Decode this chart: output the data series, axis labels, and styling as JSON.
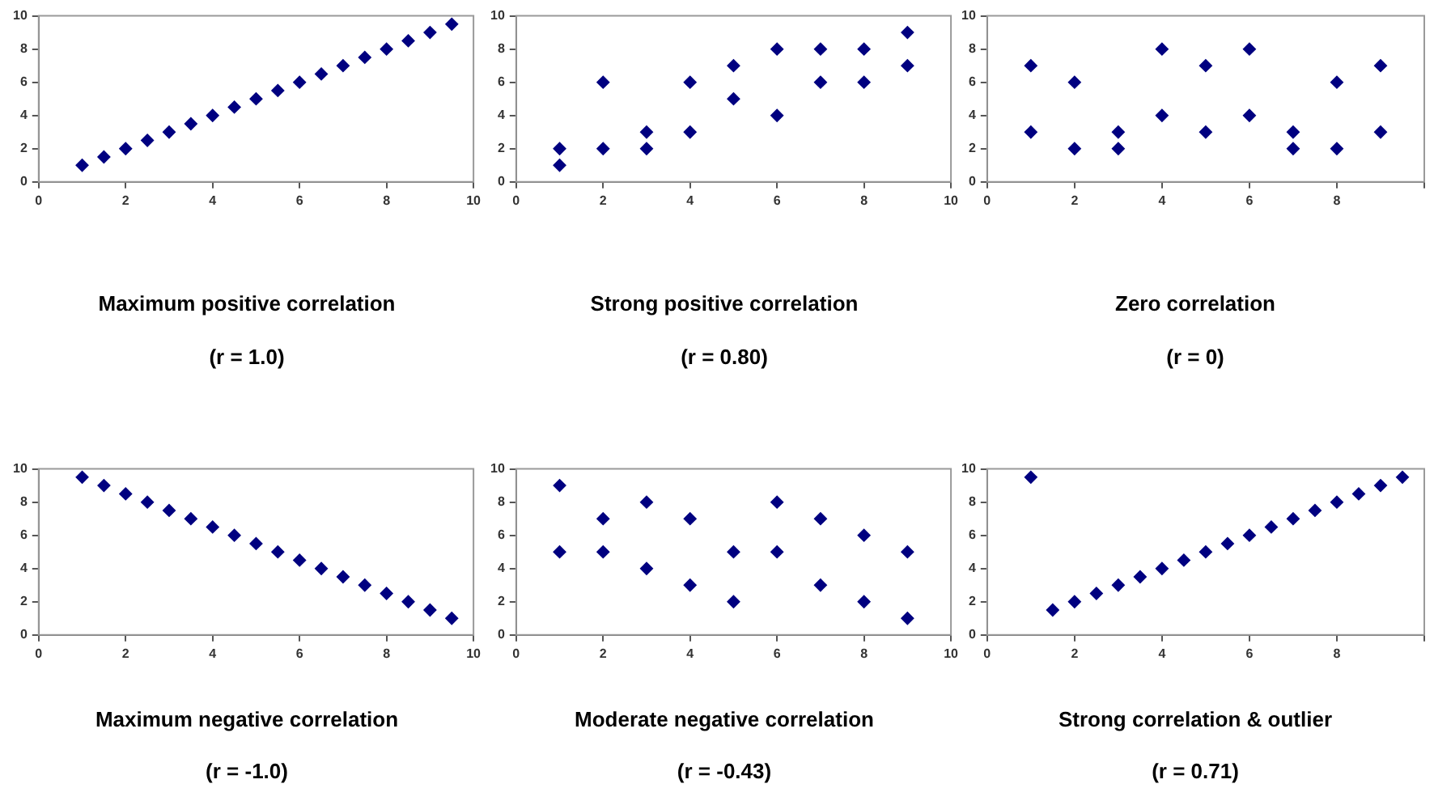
{
  "chart_data": [
    {
      "type": "scatter",
      "title": "Maximum positive correlation",
      "subtitle": "(r = 1.0)",
      "x": [
        1,
        1.5,
        2,
        2.5,
        3,
        3.5,
        4,
        4.5,
        5,
        5.5,
        6,
        6.5,
        7,
        7.5,
        8,
        8.5,
        9,
        9.5
      ],
      "series": [
        {
          "color": "#000080",
          "values": [
            1,
            1.5,
            2,
            2.5,
            3,
            3.5,
            4,
            4.5,
            5,
            5.5,
            6,
            6.5,
            7,
            7.5,
            8,
            8.5,
            9,
            9.5
          ]
        }
      ],
      "xlim": [
        0,
        10
      ],
      "ylim": [
        0,
        10
      ],
      "xticks": [
        0,
        2,
        4,
        6,
        8,
        10
      ],
      "yticks": [
        0,
        2,
        4,
        6,
        8,
        10
      ],
      "grid": false,
      "legend": false,
      "marker": "diamond"
    },
    {
      "type": "scatter",
      "title": "Strong positive correlation",
      "subtitle": "(r = 0.80)",
      "x": [
        1,
        1,
        2,
        2,
        3,
        3,
        4,
        4,
        5,
        5,
        6,
        6,
        7,
        7,
        8,
        8,
        9,
        9
      ],
      "series": [
        {
          "color": "#000080",
          "values": [
            2,
            1,
            6,
            2,
            3,
            2,
            6,
            3,
            7,
            5,
            8,
            4,
            8,
            6,
            8,
            6,
            9,
            7
          ]
        }
      ],
      "xlim": [
        0,
        10
      ],
      "ylim": [
        0,
        10
      ],
      "xticks": [
        0,
        2,
        4,
        6,
        8,
        10
      ],
      "yticks": [
        0,
        2,
        4,
        6,
        8,
        10
      ],
      "grid": false,
      "legend": false,
      "marker": "diamond"
    },
    {
      "type": "scatter",
      "title": "Zero correlation",
      "subtitle": "(r = 0)",
      "x": [
        1,
        1,
        2,
        2,
        3,
        3,
        4,
        4,
        5,
        5,
        6,
        6,
        7,
        7,
        8,
        8,
        9,
        9
      ],
      "series": [
        {
          "color": "#000080",
          "values": [
            7,
            3,
            6,
            2,
            3,
            2,
            8,
            4,
            7,
            3,
            8,
            4,
            3,
            2,
            6,
            2,
            7,
            3
          ]
        }
      ],
      "xlim": [
        0,
        10
      ],
      "ylim": [
        0,
        10
      ],
      "xticks": [
        0,
        2,
        4,
        6,
        8,
        {
          "value": 10,
          "label": null
        }
      ],
      "yticks": [
        0,
        2,
        4,
        6,
        8,
        10
      ],
      "grid": false,
      "legend": false,
      "marker": "diamond"
    },
    {
      "type": "scatter",
      "title": "Maximum negative correlation",
      "subtitle": "(r = -1.0)",
      "x": [
        1,
        1.5,
        2,
        2.5,
        3,
        3.5,
        4,
        4.5,
        5,
        5.5,
        6,
        6.5,
        7,
        7.5,
        8,
        8.5,
        9,
        9.5
      ],
      "series": [
        {
          "color": "#000080",
          "values": [
            9.5,
            9,
            8.5,
            8,
            7.5,
            7,
            6.5,
            6,
            5.5,
            5,
            4.5,
            4,
            3.5,
            3,
            2.5,
            2,
            1.5,
            1
          ]
        }
      ],
      "xlim": [
        0,
        10
      ],
      "ylim": [
        0,
        10
      ],
      "xticks": [
        0,
        2,
        4,
        6,
        8,
        10
      ],
      "yticks": [
        0,
        2,
        4,
        6,
        8,
        10
      ],
      "grid": false,
      "legend": false,
      "marker": "diamond"
    },
    {
      "type": "scatter",
      "title": "Moderate negative correlation",
      "subtitle": "(r = -0.43)",
      "x": [
        1,
        1,
        2,
        2,
        3,
        3,
        4,
        4,
        5,
        5,
        6,
        6,
        7,
        7,
        8,
        8,
        9,
        9
      ],
      "series": [
        {
          "color": "#000080",
          "values": [
            9,
            5,
            7,
            5,
            8,
            4,
            7,
            3,
            5,
            2,
            8,
            5,
            7,
            3,
            6,
            2,
            5,
            1
          ]
        }
      ],
      "xlim": [
        0,
        10
      ],
      "ylim": [
        0,
        10
      ],
      "xticks": [
        0,
        2,
        4,
        6,
        8,
        10
      ],
      "yticks": [
        0,
        2,
        4,
        6,
        8,
        10
      ],
      "grid": false,
      "legend": false,
      "marker": "diamond"
    },
    {
      "type": "scatter",
      "title": "Strong correlation & outlier",
      "subtitle": "(r = 0.71)",
      "x": [
        1,
        1.5,
        2,
        2.5,
        3,
        3.5,
        4,
        4.5,
        5,
        5.5,
        6,
        6.5,
        7,
        7.5,
        8,
        8.5,
        9,
        9.5
      ],
      "series": [
        {
          "color": "#000080",
          "values": [
            9.5,
            1.5,
            2,
            2.5,
            3,
            3.5,
            4,
            4.5,
            5,
            5.5,
            6,
            6.5,
            7,
            7.5,
            8,
            8.5,
            9,
            9.5
          ]
        }
      ],
      "xlim": [
        0,
        10
      ],
      "ylim": [
        0,
        10
      ],
      "xticks": [
        0,
        2,
        4,
        6,
        8,
        {
          "value": 10,
          "label": null
        }
      ],
      "yticks": [
        0,
        2,
        4,
        6,
        8,
        10
      ],
      "grid": false,
      "legend": false,
      "marker": "diamond"
    }
  ]
}
